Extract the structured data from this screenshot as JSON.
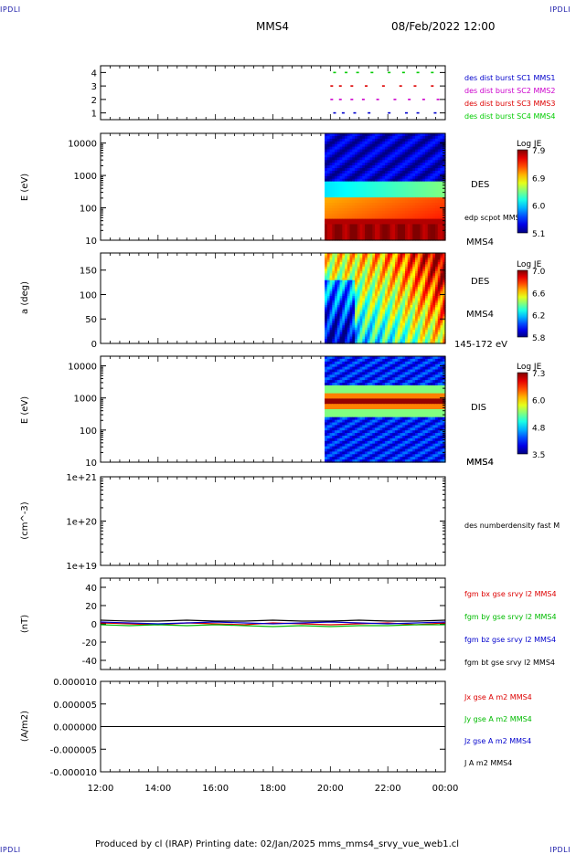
{
  "corner_label": "IPDLI",
  "header": {
    "spacecraft": "MMS4",
    "date": "08/Feb/2022 12:00"
  },
  "footer": {
    "text": "Produced by cl (IRAP)   Printing date: 02/Jan/2025   mms_mms4_srvy_vue_web1.cl"
  },
  "chart_data": [
    {
      "type": "scatter",
      "panel": "burst-availability",
      "yticks": [
        "1",
        "2",
        "3",
        "4"
      ],
      "ylim": [
        0.5,
        4.5
      ],
      "xlim": [
        "12:00",
        "00:00"
      ],
      "series": [
        {
          "name": "des dist burst SC1 MMS1",
          "color": "#0000cc",
          "y": 1,
          "x_hours": [
            20.1,
            20.4,
            20.8,
            21.3,
            22.0,
            22.6,
            23.0,
            23.6
          ]
        },
        {
          "name": "des dist burst SC2 MMS2",
          "color": "#cc00cc",
          "y": 2,
          "x_hours": [
            20.0,
            20.3,
            20.7,
            21.1,
            21.6,
            22.2,
            22.7,
            23.2,
            23.7
          ]
        },
        {
          "name": "des dist burst SC3 MMS3",
          "color": "#dd0000",
          "y": 3,
          "x_hours": [
            20.0,
            20.3,
            20.7,
            21.2,
            21.8,
            22.4,
            22.9,
            23.5
          ]
        },
        {
          "name": "des dist burst SC4 MMS4",
          "color": "#00cc00",
          "y": 4,
          "x_hours": [
            20.1,
            20.5,
            20.9,
            21.4,
            22.0,
            22.5,
            23.0,
            23.5
          ]
        }
      ]
    },
    {
      "type": "heatmap",
      "panel": "des-energy",
      "ylabel": "E (eV)",
      "yticks": [
        "10",
        "100",
        "1000",
        "10000"
      ],
      "label": "DES",
      "overlay_label": "edp scpot MMS4",
      "spacecraft_label": "MMS4",
      "colorbar": {
        "title": "Log JE",
        "ticks": [
          "5.1",
          "6.0",
          "6.9",
          "7.9"
        ]
      },
      "data_start_hour": 19.8
    },
    {
      "type": "heatmap",
      "panel": "des-pitch-angle",
      "ylabel": "a (deg)",
      "yticks": [
        "0",
        "50",
        "100",
        "150"
      ],
      "label": "DES",
      "spacecraft_label": "MMS4",
      "energy_band": "145-172 eV",
      "colorbar": {
        "title": "Log JE",
        "ticks": [
          "5.8",
          "6.2",
          "6.6",
          "7.0"
        ]
      },
      "data_start_hour": 19.8
    },
    {
      "type": "heatmap",
      "panel": "dis-energy",
      "ylabel": "E (eV)",
      "yticks": [
        "10",
        "100",
        "1000",
        "10000"
      ],
      "label": "DIS",
      "spacecraft_label": "MMS4",
      "colorbar": {
        "title": "Log JE",
        "ticks": [
          "3.5",
          "4.8",
          "6.0",
          "7.3"
        ]
      },
      "data_start_hour": 19.8
    },
    {
      "type": "line",
      "panel": "density",
      "ylabel": "(cm^-3)",
      "yticks": [
        "1e+19",
        "1e+20",
        "1e+21"
      ],
      "series": [
        {
          "name": "des numberdensity fast M",
          "color": "#000000",
          "x": [],
          "y": []
        }
      ]
    },
    {
      "type": "line",
      "panel": "magnetic-field",
      "ylabel": "(nT)",
      "yticks": [
        "-40",
        "-20",
        "0",
        "20",
        "40"
      ],
      "ylim": [
        -50,
        50
      ],
      "x_hours": [
        12,
        13,
        14,
        15,
        16,
        17,
        18,
        19,
        20,
        21,
        22,
        23,
        24
      ],
      "series": [
        {
          "name": "fgm bx gse srvy l2 MMS4",
          "color": "#dd0000",
          "y": [
            1,
            0,
            -1,
            1,
            0,
            -1,
            1,
            0,
            -1,
            0,
            1,
            -1,
            1
          ]
        },
        {
          "name": "fgm by gse srvy l2 MMS4",
          "color": "#00bb00",
          "y": [
            -1,
            -2,
            -1,
            -2,
            -1,
            -2,
            -3,
            -2,
            -3,
            -2,
            -2,
            -1,
            -1
          ]
        },
        {
          "name": "fgm bz gse srvy l2 MMS4",
          "color": "#0000cc",
          "y": [
            2,
            1,
            0,
            1,
            2,
            1,
            0,
            1,
            2,
            1,
            0,
            1,
            2
          ]
        },
        {
          "name": "fgm bt gse srvy l2 MMS4",
          "color": "#000000",
          "y": [
            4,
            3,
            3,
            4,
            3,
            3,
            4,
            3,
            3,
            4,
            3,
            3,
            4
          ]
        }
      ]
    },
    {
      "type": "line",
      "panel": "current-density",
      "ylabel": "(A/m2)",
      "yticks": [
        "-0.000010",
        "-0.000005",
        "0.000000",
        "0.000005",
        "0.000010"
      ],
      "ylim": [
        -1e-05,
        1e-05
      ],
      "series": [
        {
          "name": "Jx gse A m2 MMS4",
          "color": "#dd0000",
          "x_hours": [
            12,
            24
          ],
          "y": [
            0,
            0
          ]
        },
        {
          "name": "Jy gse A m2 MMS4",
          "color": "#00bb00",
          "x_hours": [
            12,
            24
          ],
          "y": [
            0,
            0
          ]
        },
        {
          "name": "Jz gse A m2 MMS4",
          "color": "#0000cc",
          "x_hours": [
            12,
            24
          ],
          "y": [
            0,
            0
          ]
        },
        {
          "name": "J A m2 MMS4",
          "color": "#000000",
          "x_hours": [
            12,
            24
          ],
          "y": [
            0,
            0
          ]
        }
      ]
    }
  ],
  "xaxis": {
    "ticks": [
      "12:00",
      "14:00",
      "16:00",
      "18:00",
      "20:00",
      "22:00",
      "00:00"
    ]
  }
}
